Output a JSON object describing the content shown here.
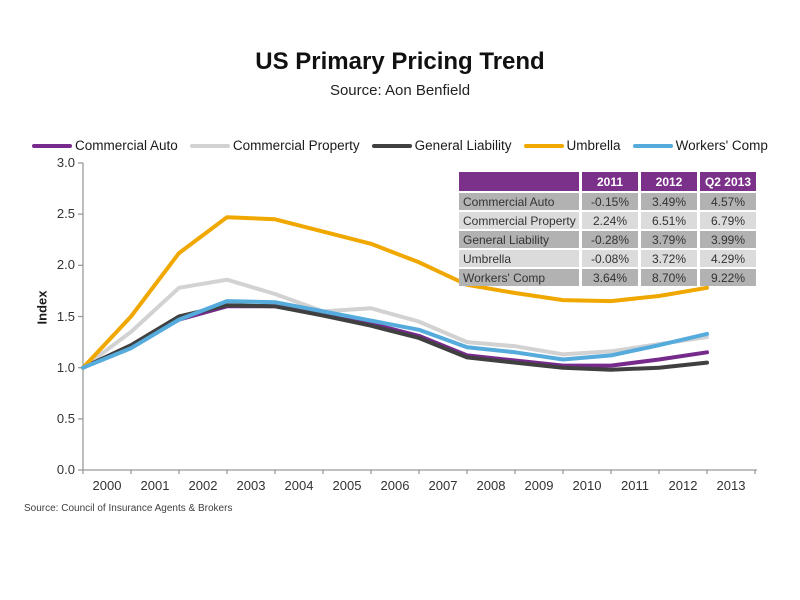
{
  "header": {
    "title": "US Primary Pricing Trend",
    "subtitle": "Source: Aon Benfield"
  },
  "footer": {
    "source": "Source:  Council of Insurance Agents & Brokers"
  },
  "colors": {
    "commercial_auto": "#762B8C",
    "commercial_property": "#D2D2D2",
    "general_liability": "#404040",
    "umbrella": "#F0A800",
    "workers_comp": "#54ABDC",
    "table_header_bg": "#7B3089",
    "table_row_dark": "#B2B2B2",
    "table_row_light": "#DBDBDB",
    "axis": "#9A9A9A"
  },
  "chart_data": {
    "type": "line",
    "title": "US Primary Pricing Trend",
    "subtitle": "Source: Aon Benfield",
    "xlabel": "",
    "ylabel": "Index",
    "ylim": [
      0.0,
      3.0
    ],
    "yticks": [
      "0.0",
      "0.5",
      "1.0",
      "1.5",
      "2.0",
      "2.5",
      "3.0"
    ],
    "grid": false,
    "legend_position": "top",
    "x": [
      "2000",
      "2001",
      "2002",
      "2003",
      "2004",
      "2005",
      "2006",
      "2007",
      "2008",
      "2009",
      "2010",
      "2011",
      "2012",
      "2013"
    ],
    "series": [
      {
        "name": "Commercial Auto",
        "color": "#762B8C",
        "values": [
          1.0,
          1.21,
          1.47,
          1.6,
          1.6,
          1.52,
          1.43,
          1.31,
          1.12,
          1.07,
          1.02,
          1.02,
          1.08,
          1.15
        ]
      },
      {
        "name": "Commercial Property",
        "color": "#D2D2D2",
        "values": [
          1.0,
          1.35,
          1.78,
          1.86,
          1.72,
          1.55,
          1.58,
          1.45,
          1.25,
          1.21,
          1.13,
          1.16,
          1.23,
          1.3
        ]
      },
      {
        "name": "General Liability",
        "color": "#404040",
        "values": [
          1.0,
          1.22,
          1.5,
          1.61,
          1.6,
          1.51,
          1.41,
          1.29,
          1.1,
          1.05,
          1.0,
          0.98,
          1.0,
          1.05
        ]
      },
      {
        "name": "Umbrella",
        "color": "#F0A800",
        "values": [
          1.0,
          1.5,
          2.12,
          2.47,
          2.45,
          2.33,
          2.21,
          2.03,
          1.81,
          1.73,
          1.66,
          1.65,
          1.7,
          1.78
        ]
      },
      {
        "name": "Workers' Comp",
        "color": "#54ABDC",
        "values": [
          1.0,
          1.19,
          1.47,
          1.65,
          1.64,
          1.55,
          1.46,
          1.37,
          1.2,
          1.15,
          1.08,
          1.12,
          1.22,
          1.33
        ]
      }
    ]
  },
  "table": {
    "columns": [
      "",
      "2011",
      "2012",
      "Q2 2013"
    ],
    "rows": [
      {
        "label": "Commercial Auto",
        "values": [
          "-0.15%",
          "3.49%",
          "4.57%"
        ]
      },
      {
        "label": "Commercial Property",
        "values": [
          "2.24%",
          "6.51%",
          "6.79%"
        ]
      },
      {
        "label": "General Liability",
        "values": [
          "-0.28%",
          "3.79%",
          "3.99%"
        ]
      },
      {
        "label": "Umbrella",
        "values": [
          "-0.08%",
          "3.72%",
          "4.29%"
        ]
      },
      {
        "label": "Workers' Comp",
        "values": [
          "3.64%",
          "8.70%",
          "9.22%"
        ]
      }
    ]
  }
}
